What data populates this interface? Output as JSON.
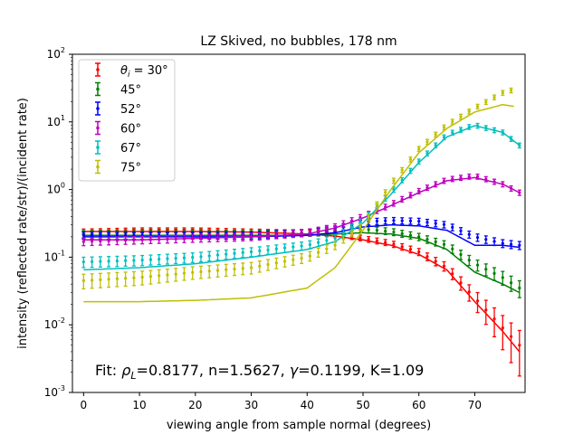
{
  "chart_data": {
    "type": "scatter",
    "title": "LZ Skived, no bubbles, 178 nm",
    "xlabel": "viewing angle from sample normal (degrees)",
    "ylabel": "intensity (reflected rate/str)/(incident rate)",
    "xlim": [
      -2,
      79
    ],
    "ylim": [
      0.001,
      100
    ],
    "yscale": "log",
    "x_ticks": [
      "0",
      "10",
      "20",
      "30",
      "40",
      "50",
      "60",
      "70"
    ],
    "y_ticks": [
      {
        "base": "10",
        "exp": "-3"
      },
      {
        "base": "10",
        "exp": "-2"
      },
      {
        "base": "10",
        "exp": "-1"
      },
      {
        "base": "10",
        "exp": "0"
      },
      {
        "base": "10",
        "exp": "1"
      },
      {
        "base": "10",
        "exp": "2"
      }
    ],
    "grid": false,
    "legend_position": "top-left",
    "fit_annotation": {
      "prefix": "Fit: ",
      "rho_symbol": "ρ",
      "rho_sub": "L",
      "rho_value": "=0.8177, n=1.5627, ",
      "gamma_symbol": "γ",
      "rest": "=0.1199, K=1.09"
    },
    "series": [
      {
        "legend": "θi = 30°",
        "legend_symbol": "θ",
        "legend_sub": "i",
        "legend_rest": " = 30°",
        "color": "#ff0000",
        "x": [
          0,
          10,
          20,
          30,
          40,
          45,
          50,
          55,
          60,
          65,
          70,
          75,
          78
        ],
        "data_y": [
          0.24,
          0.25,
          0.25,
          0.24,
          0.23,
          0.22,
          0.19,
          0.16,
          0.12,
          0.07,
          0.025,
          0.009,
          0.005
        ],
        "fit_y": [
          0.24,
          0.24,
          0.24,
          0.235,
          0.22,
          0.205,
          0.18,
          0.15,
          0.11,
          0.065,
          0.022,
          0.008,
          0.004
        ]
      },
      {
        "legend": "45°",
        "color": "#008000",
        "x": [
          0,
          10,
          20,
          30,
          40,
          45,
          50,
          55,
          60,
          65,
          70,
          75,
          78
        ],
        "data_y": [
          0.22,
          0.23,
          0.23,
          0.22,
          0.23,
          0.24,
          0.26,
          0.24,
          0.2,
          0.15,
          0.08,
          0.05,
          0.035
        ],
        "fit_y": [
          0.21,
          0.21,
          0.21,
          0.21,
          0.21,
          0.22,
          0.23,
          0.22,
          0.19,
          0.13,
          0.06,
          0.04,
          0.03
        ]
      },
      {
        "legend": "52°",
        "color": "#0000ff",
        "x": [
          0,
          10,
          20,
          30,
          40,
          45,
          50,
          55,
          60,
          65,
          70,
          75,
          78
        ],
        "data_y": [
          0.21,
          0.21,
          0.21,
          0.21,
          0.23,
          0.26,
          0.33,
          0.35,
          0.34,
          0.3,
          0.2,
          0.16,
          0.15
        ],
        "fit_y": [
          0.2,
          0.2,
          0.2,
          0.2,
          0.21,
          0.23,
          0.28,
          0.3,
          0.29,
          0.25,
          0.15,
          0.15,
          0.14
        ]
      },
      {
        "legend": "60°",
        "color": "#bf00bf",
        "x": [
          0,
          10,
          20,
          30,
          40,
          45,
          50,
          55,
          60,
          65,
          70,
          75,
          78
        ],
        "data_y": [
          0.17,
          0.18,
          0.19,
          0.2,
          0.23,
          0.28,
          0.4,
          0.6,
          0.95,
          1.4,
          1.6,
          1.2,
          0.9
        ],
        "fit_y": [
          0.18,
          0.18,
          0.19,
          0.2,
          0.22,
          0.27,
          0.38,
          0.58,
          0.9,
          1.35,
          1.5,
          1.2,
          0.9
        ]
      },
      {
        "legend": "67°",
        "color": "#00bfbf",
        "x": [
          0,
          10,
          20,
          30,
          40,
          45,
          50,
          55,
          60,
          65,
          70,
          75,
          78
        ],
        "data_y": [
          0.085,
          0.09,
          0.1,
          0.12,
          0.15,
          0.19,
          0.35,
          0.9,
          2.6,
          6.5,
          9.0,
          7.0,
          4.5
        ],
        "fit_y": [
          0.065,
          0.07,
          0.08,
          0.1,
          0.13,
          0.17,
          0.32,
          0.85,
          2.5,
          6.0,
          8.8,
          7.0,
          4.5
        ]
      },
      {
        "legend": "75°",
        "color": "#bfbf00",
        "x": [
          0,
          10,
          20,
          30,
          40,
          45,
          50,
          55,
          60,
          65,
          70,
          75,
          77
        ],
        "data_y": [
          0.045,
          0.05,
          0.06,
          0.07,
          0.1,
          0.15,
          0.3,
          1.2,
          4.0,
          9.0,
          16,
          27,
          30
        ],
        "fit_y": [
          0.022,
          0.022,
          0.023,
          0.025,
          0.035,
          0.07,
          0.25,
          1.0,
          3.5,
          8.0,
          14,
          18,
          17
        ]
      }
    ]
  }
}
